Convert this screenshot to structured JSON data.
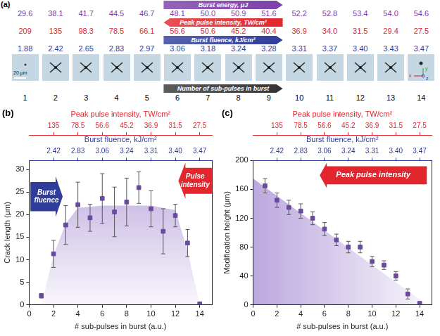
{
  "panel_a": {
    "letter": "(a)",
    "rows": [
      {
        "label": "Burst energy, μJ",
        "color": "#7a3fa8",
        "arrow": "right",
        "values": [
          "29.6",
          "38.1",
          "41.7",
          "44.5",
          "46.7",
          "48.1",
          "50.0",
          "50.9",
          "51.6",
          "52.2",
          "52.8",
          "53.4",
          "54.0",
          "54.6"
        ]
      },
      {
        "label": "Peak pulse intensity, TW/cm²",
        "color": "#e3262d",
        "arrow": "left",
        "values": [
          "209",
          "135",
          "98.3",
          "78.5",
          "66.1",
          "56.6",
          "50.6",
          "45.2",
          "40.4",
          "36.9",
          "34.0",
          "31.5",
          "29.4",
          "27.5"
        ]
      },
      {
        "label": "Burst fluence, kJ/cm²",
        "color": "#2f3c9a",
        "arrow": "right",
        "values": [
          "1.88",
          "2.42",
          "2.65",
          "2.83",
          "2.97",
          "3.06",
          "3.18",
          "3.24",
          "3.28",
          "3.31",
          "3.37",
          "3.40",
          "3.43",
          "3.47"
        ]
      }
    ],
    "scale_bar": "20 μm",
    "axes_labels": [
      "x",
      "y",
      "z"
    ],
    "index": {
      "label": "Number of sub-pulses in burst",
      "color": "#333333",
      "arrow": "right",
      "values": [
        1,
        2,
        3,
        4,
        5,
        6,
        7,
        8,
        9,
        10,
        11,
        12,
        13,
        14
      ]
    }
  },
  "chart_data": [
    {
      "type": "scatter",
      "letter": "(b)",
      "x_label": "# sub-pulses in burst (a.u.)",
      "y_label": "Crack length (μm)",
      "x": [
        1,
        2,
        3,
        4,
        5,
        6,
        7,
        8,
        9,
        10,
        11,
        12,
        13,
        14
      ],
      "values": [
        2,
        11.3,
        17.7,
        22.2,
        19.3,
        23.6,
        20.6,
        22.8,
        26,
        21.3,
        16.3,
        19.8,
        13.7,
        0.2
      ],
      "errors": [
        0.5,
        3,
        4.3,
        5,
        3,
        5.5,
        5.5,
        5.3,
        3.5,
        4,
        5,
        2.5,
        3,
        0
      ],
      "color": "#6a4a9e",
      "marker": "square",
      "xlim": [
        0,
        15
      ],
      "xticks": [
        0,
        2,
        4,
        6,
        8,
        10,
        12,
        14
      ],
      "ylim": [
        0,
        32
      ],
      "yticks": [
        0,
        5,
        10,
        15,
        20,
        25,
        30
      ],
      "grid": false,
      "envelope": {
        "x": [
          1,
          2,
          3,
          4,
          6,
          10,
          12,
          13,
          14
        ],
        "y": [
          0,
          11,
          18,
          21.5,
          22,
          22,
          21,
          12,
          0
        ],
        "color": "#8f6fc8"
      },
      "annotations": [
        {
          "text": "Burst fluence",
          "color": "#2f3c9a",
          "arrow": "right"
        },
        {
          "text": "Pulse intensity",
          "color": "#e3262d",
          "arrow": "left"
        }
      ],
      "top_axes": [
        {
          "title": "Peak pulse intensity, TW/cm²",
          "color": "#e3262d",
          "ticks": [
            {
              "value": 2,
              "label": "135"
            },
            {
              "value": 4,
              "label": "78.5"
            },
            {
              "value": 6,
              "label": "56.6"
            },
            {
              "value": 8,
              "label": "45.2"
            },
            {
              "value": 10,
              "label": "36.9"
            },
            {
              "value": 12,
              "label": "31.5"
            },
            {
              "value": 14,
              "label": "27.5"
            }
          ]
        },
        {
          "title": "Burst fluence, kJ/cm²",
          "color": "#2f3c9a",
          "ticks": [
            {
              "value": 2,
              "label": "2.42"
            },
            {
              "value": 4,
              "label": "2.83"
            },
            {
              "value": 6,
              "label": "3.06"
            },
            {
              "value": 8,
              "label": "3.24"
            },
            {
              "value": 10,
              "label": "3.31"
            },
            {
              "value": 12,
              "label": "3.40"
            },
            {
              "value": 14,
              "label": "3.47"
            }
          ]
        }
      ]
    },
    {
      "type": "scatter",
      "letter": "(c)",
      "x_label": "# sub-pulses in burst (a.u.)",
      "y_label": "Modification height (μm)",
      "x": [
        1,
        2,
        3,
        4,
        5,
        6,
        7,
        8,
        9,
        10,
        11,
        12,
        13,
        14
      ],
      "values": [
        165,
        145,
        135,
        130,
        120,
        105,
        90,
        80,
        80,
        60,
        55,
        40,
        15,
        2
      ],
      "errors": [
        10,
        10,
        10,
        10,
        9,
        9,
        8,
        8,
        8,
        7,
        6,
        6,
        7,
        0
      ],
      "color": "#6a4a9e",
      "marker": "square",
      "xlim": [
        0,
        15
      ],
      "xticks": [
        0,
        2,
        4,
        6,
        8,
        10,
        12,
        14
      ],
      "ylim": [
        0,
        200
      ],
      "yticks": [
        0,
        40,
        80,
        120,
        160,
        200
      ],
      "grid": false,
      "envelope": {
        "x": [
          0,
          14.6
        ],
        "y": [
          175,
          0
        ],
        "color": "#8f6fc8"
      },
      "annotations": [
        {
          "text": "Peak pulse intensity",
          "color": "#e3262d",
          "arrow": "left"
        }
      ],
      "top_axes": [
        {
          "title": "Peak pulse intensity, TW/cm²",
          "color": "#e3262d",
          "ticks": [
            {
              "value": 2,
              "label": "135"
            },
            {
              "value": 4,
              "label": "78.5"
            },
            {
              "value": 6,
              "label": "56.6"
            },
            {
              "value": 8,
              "label": "45.2"
            },
            {
              "value": 10,
              "label": "36.9"
            },
            {
              "value": 12,
              "label": "31.5"
            },
            {
              "value": 14,
              "label": "27.5"
            }
          ]
        },
        {
          "title": "Burst fluence, kJ/cm²",
          "color": "#2f3c9a",
          "ticks": [
            {
              "value": 2,
              "label": "2.42"
            },
            {
              "value": 4,
              "label": "2.83"
            },
            {
              "value": 6,
              "label": "3.06"
            },
            {
              "value": 8,
              "label": "3.24"
            },
            {
              "value": 10,
              "label": "3.31"
            },
            {
              "value": 12,
              "label": "3.40"
            },
            {
              "value": 14,
              "label": "3.47"
            }
          ]
        }
      ]
    }
  ]
}
